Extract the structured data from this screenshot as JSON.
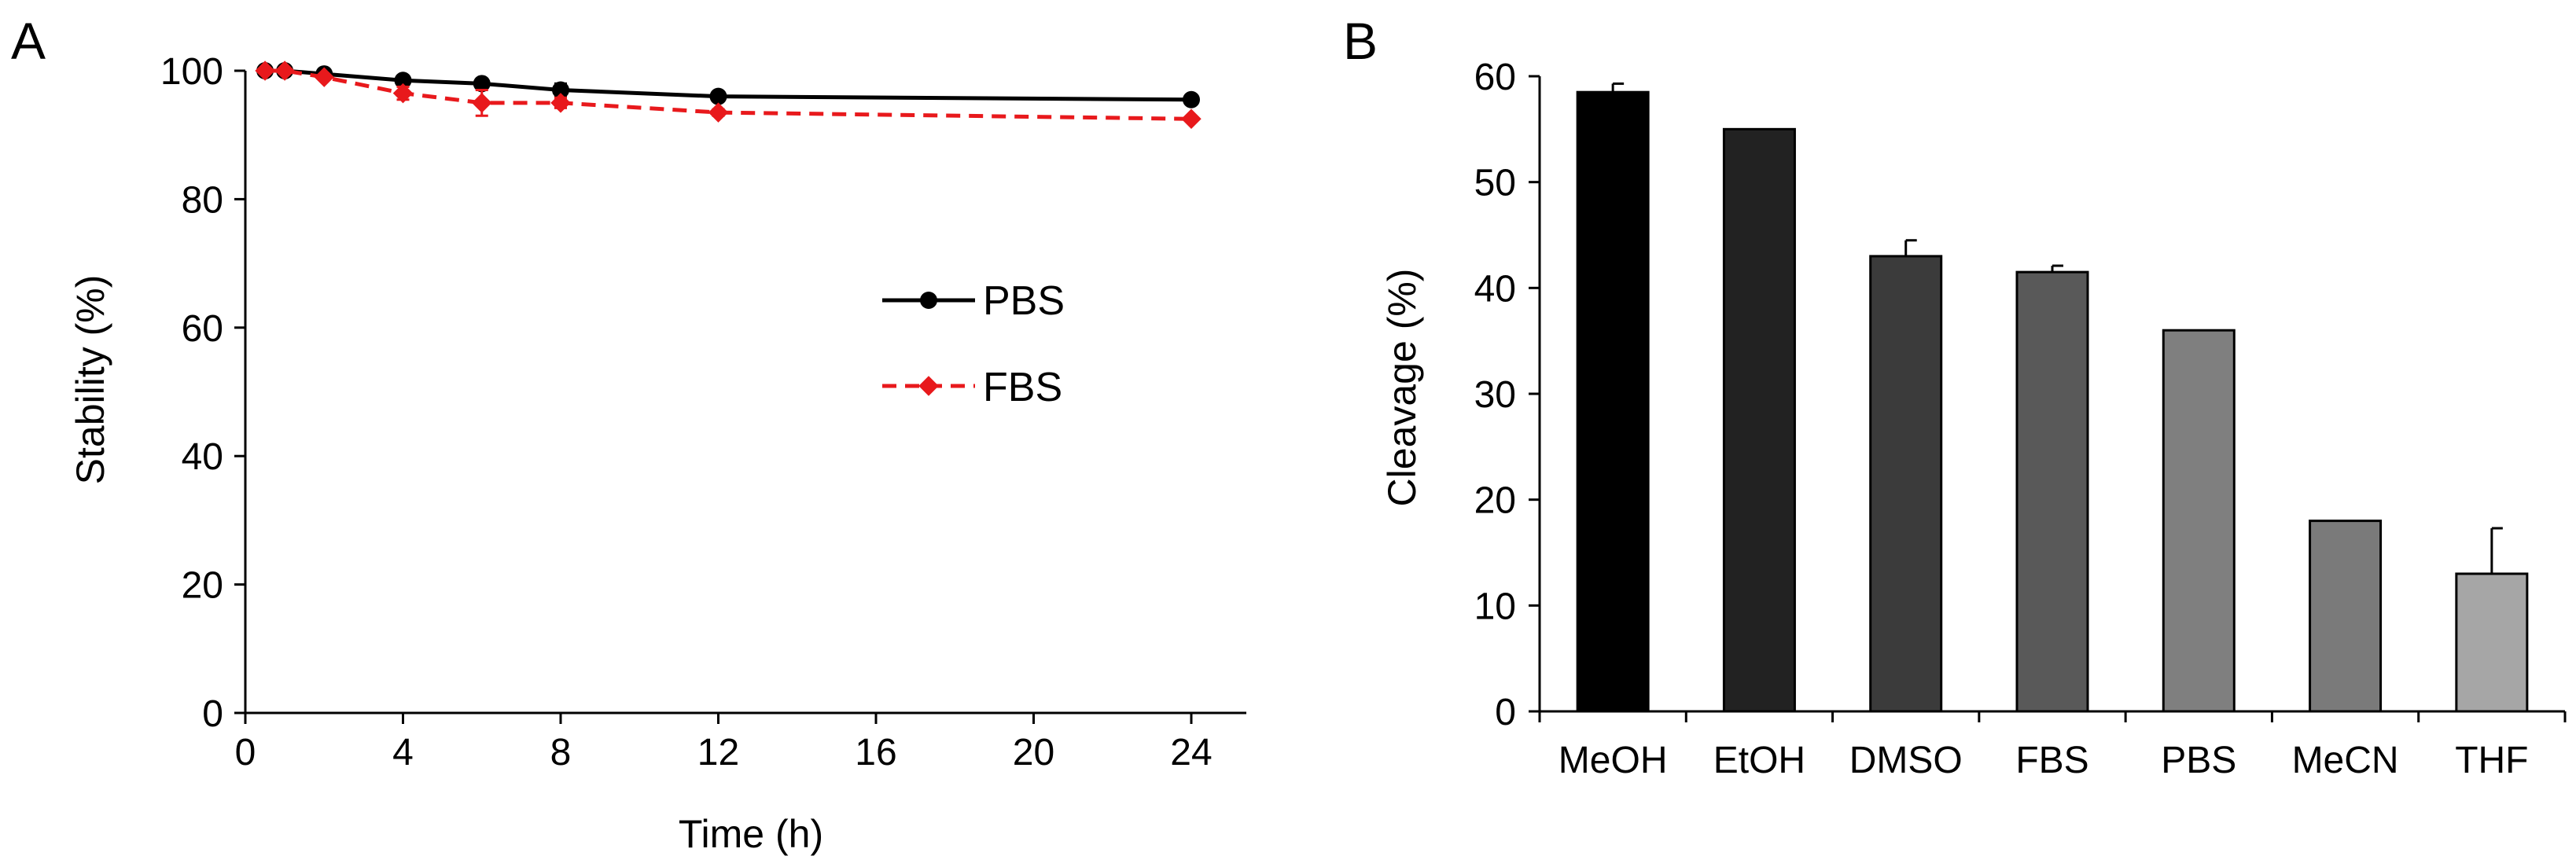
{
  "chart_data": [
    {
      "panel_label": "A",
      "type": "line",
      "title": "",
      "xlabel": "Time (h)",
      "ylabel": "Stability (%)",
      "xlim": [
        0,
        24
      ],
      "ylim": [
        0,
        100
      ],
      "xticks": [
        "0",
        "4",
        "8",
        "12",
        "16",
        "20",
        "24"
      ],
      "yticks": [
        "0",
        "20",
        "40",
        "60",
        "80",
        "100"
      ],
      "legend_position": "center-right",
      "series": [
        {
          "name": "PBS",
          "color": "#000000",
          "line_style": "solid",
          "marker": "circle",
          "x": [
            0.5,
            1,
            2,
            4,
            6,
            8,
            12,
            24
          ],
          "values": [
            100,
            100,
            99.5,
            98.5,
            98,
            97,
            96,
            95.5
          ],
          "errors": [
            0,
            0,
            0,
            0.3,
            0.5,
            1,
            0.2,
            0.2
          ]
        },
        {
          "name": "FBS",
          "color": "#e8191c",
          "line_style": "dashed",
          "marker": "diamond",
          "x": [
            0.5,
            1,
            2,
            4,
            6,
            8,
            12,
            24
          ],
          "values": [
            100,
            100,
            99,
            96.5,
            95,
            95,
            93.5,
            92.5
          ],
          "errors": [
            0,
            0,
            0.3,
            1,
            2,
            0.8,
            0.5,
            0.3
          ]
        }
      ]
    },
    {
      "panel_label": "B",
      "type": "bar",
      "title": "",
      "xlabel": "",
      "ylabel": "Cleavage (%)",
      "ylim": [
        0,
        60
      ],
      "yticks": [
        "0",
        "10",
        "20",
        "30",
        "40",
        "50",
        "60"
      ],
      "categories": [
        "MeOH",
        "EtOH",
        "DMSO",
        "FBS",
        "PBS",
        "MeCN",
        "THF"
      ],
      "values": [
        58.5,
        55,
        43,
        41.5,
        36,
        18,
        13
      ],
      "errors": [
        0.8,
        0,
        1.5,
        0.6,
        0,
        0,
        4.3
      ],
      "colors": [
        "#000000",
        "#222222",
        "#3b3b3b",
        "#595959",
        "#7f7f7f",
        "#7a7a7a",
        "#a6a6a6"
      ]
    }
  ]
}
